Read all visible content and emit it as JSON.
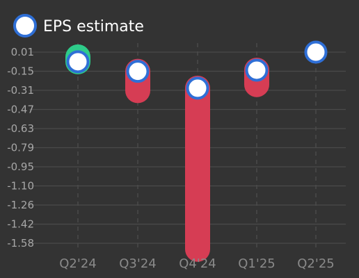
{
  "chart_data": {
    "type": "scatter",
    "legend": {
      "label": "EPS estimate",
      "placement": "top-left"
    },
    "categories": [
      "Q2'24",
      "Q3'24",
      "Q4'24",
      "Q1'25",
      "Q2'25"
    ],
    "y_ticks": [
      "0.01",
      "-0.15",
      "-0.31",
      "-0.47",
      "-0.63",
      "-0.79",
      "-0.95",
      "-1.10",
      "-1.26",
      "-1.42",
      "-1.58"
    ],
    "ylim": [
      -1.58,
      0.01
    ],
    "grid": true,
    "series": [
      {
        "name": "EPS estimate",
        "values": [
          -0.07,
          -0.15,
          -0.29,
          -0.14,
          0.01
        ]
      }
    ],
    "actual_values": [
      -0.03,
      -0.31,
      -1.63,
      -0.26,
      null
    ],
    "colors": {
      "background": "#333333",
      "grid": "#4a4a4a",
      "beat": "#2ecc8a",
      "miss": "#d63d54",
      "marker_fill": "#ffffff",
      "marker_stroke": "#2f6fd6"
    }
  }
}
